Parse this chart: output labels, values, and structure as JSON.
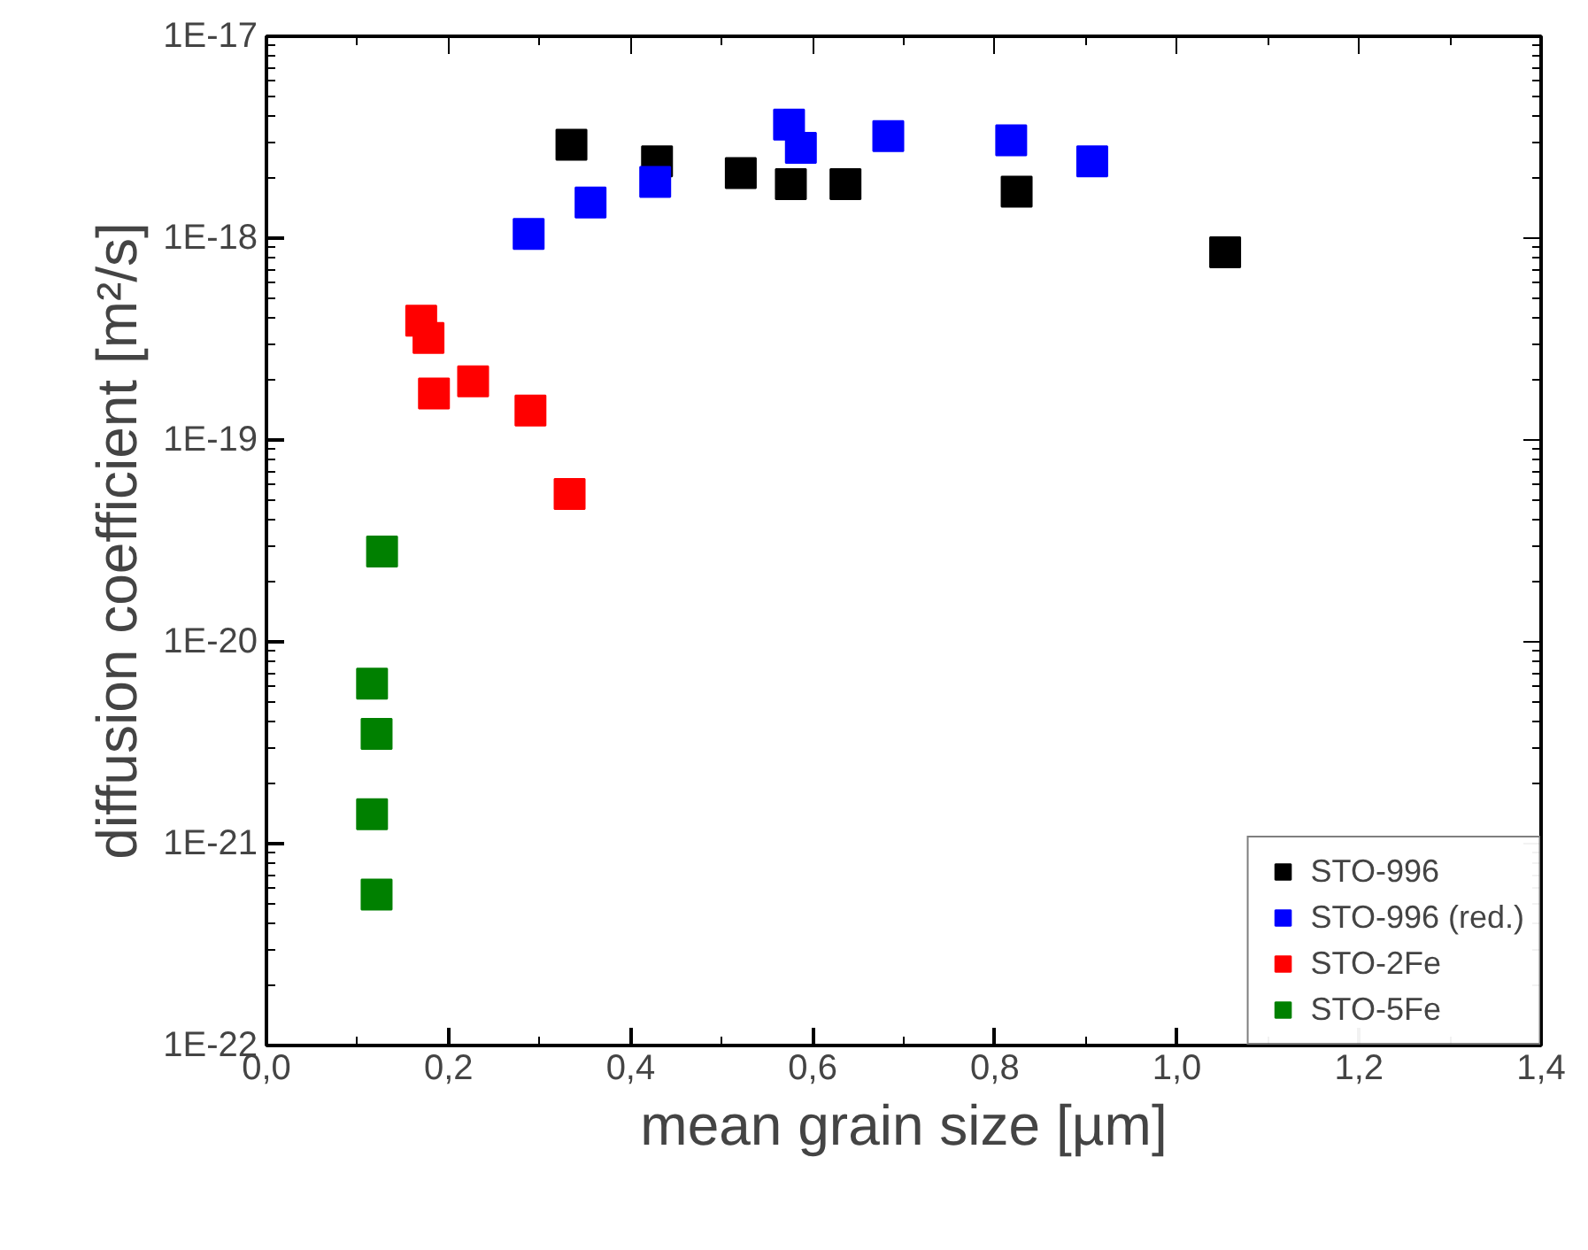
{
  "chart_data": {
    "type": "scatter",
    "xlabel": "mean grain size [µm]",
    "ylabel": "diffusion coefficient [m²/s]",
    "log": "y",
    "marker": "square",
    "grid": false,
    "legend": "bottom right",
    "xlim": [
      0,
      1.4
    ],
    "ylim": [
      1e-22,
      1e-17
    ],
    "xticks": [
      {
        "value": 0,
        "label": "0,0"
      },
      {
        "value": 0.2,
        "label": "0,2"
      },
      {
        "value": 0.4,
        "label": "0,4"
      },
      {
        "value": 0.6,
        "label": "0,6"
      },
      {
        "value": 0.8,
        "label": "0,8"
      },
      {
        "value": 1.0,
        "label": "1,0"
      },
      {
        "value": 1.2,
        "label": "1,2"
      },
      {
        "value": 1.4,
        "label": "1,4"
      }
    ],
    "yticks": [
      {
        "value": 1e-22,
        "label": "1E-22"
      },
      {
        "value": 1e-21,
        "label": "1E-21"
      },
      {
        "value": 1e-20,
        "label": "1E-20"
      },
      {
        "value": 1e-19,
        "label": "1E-19"
      },
      {
        "value": 1e-18,
        "label": "1E-18"
      },
      {
        "value": 1e-17,
        "label": "1E-17"
      }
    ],
    "series": [
      {
        "name": "STO-996",
        "color": "#000000",
        "x": [
          0.335,
          0.429,
          0.521,
          0.576,
          0.636,
          0.824,
          1.053
        ],
        "values": [
          2.9e-18,
          2.4e-18,
          2.1e-18,
          1.85e-18,
          1.85e-18,
          1.7e-18,
          8.5e-19
        ]
      },
      {
        "name": "STO-996 (red.)",
        "color": "#0000ff",
        "x": [
          0.288,
          0.356,
          0.427,
          0.574,
          0.587,
          0.683,
          0.818,
          0.907
        ],
        "values": [
          1.05e-18,
          1.5e-18,
          1.9e-18,
          3.65e-18,
          2.8e-18,
          3.2e-18,
          3.05e-18,
          2.4e-18
        ]
      },
      {
        "name": "STO-2Fe",
        "color": "#ff0000",
        "x": [
          0.17,
          0.178,
          0.184,
          0.227,
          0.29,
          0.333
        ],
        "values": [
          3.9e-19,
          3.2e-19,
          1.7e-19,
          1.95e-19,
          1.4e-19,
          5.4e-20
        ]
      },
      {
        "name": "STO-5Fe",
        "color": "#008000",
        "x": [
          0.127,
          0.116,
          0.121,
          0.116,
          0.121
        ],
        "values": [
          2.8e-20,
          6.2e-21,
          3.5e-21,
          1.4e-21,
          5.6e-22
        ]
      }
    ]
  }
}
